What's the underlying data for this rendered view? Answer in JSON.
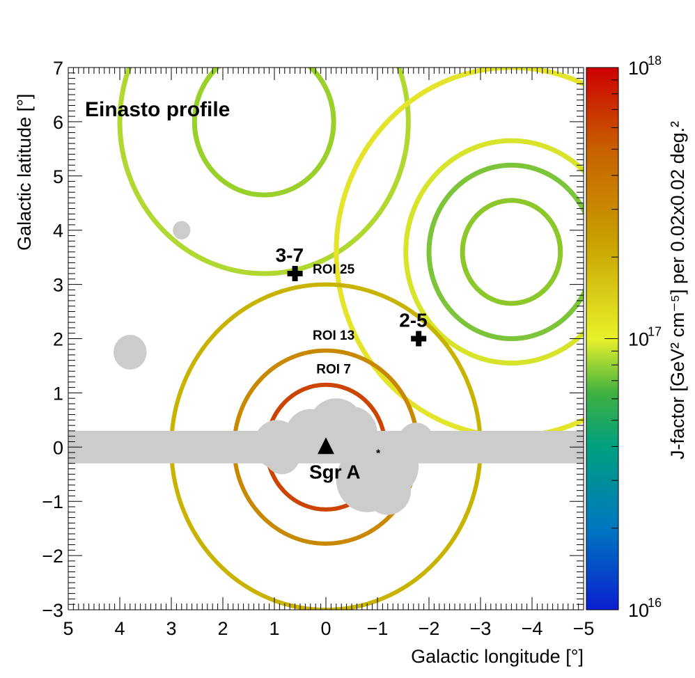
{
  "chart_data": {
    "type": "heatmap",
    "title": "Einasto profile",
    "xlabel": "Galactic longitude [°]",
    "ylabel": "Galactic latitude [°]",
    "xlim": [
      5,
      -5
    ],
    "ylim": [
      -3,
      7
    ],
    "x_ticks": [
      "5",
      "4",
      "3",
      "2",
      "1",
      "0",
      "−1",
      "−2",
      "−3",
      "−4",
      "−5"
    ],
    "y_ticks": [
      "−3",
      "−2",
      "−1",
      "0",
      "1",
      "2",
      "3",
      "4",
      "5",
      "6",
      "7"
    ],
    "colorbar": {
      "label": "J-factor [GeV² cm⁻⁵] per 0.02x0.02 deg.²",
      "scale": "log",
      "range": [
        1e+16,
        1e+18
      ],
      "tick_labels": [
        {
          "value": 1e+16,
          "base": "10",
          "exp": "16"
        },
        {
          "value": 1e+17,
          "base": "10",
          "exp": "17"
        },
        {
          "value": 1e+18,
          "base": "10",
          "exp": "18"
        }
      ],
      "colors": [
        "#0a1fd0",
        "#0088c8",
        "#00a070",
        "#40b040",
        "#a8d830",
        "#f2f22a",
        "#c8a000",
        "#c86400",
        "#cc0000"
      ]
    },
    "rois": [
      {
        "label": "ROI 7",
        "l": 0,
        "b": 0,
        "radius": 1.15,
        "color": "#cc4400"
      },
      {
        "label": "ROI 13",
        "l": 0,
        "b": 0,
        "radius": 1.78,
        "color": "#c88800"
      },
      {
        "label": "ROI 25",
        "l": 0,
        "b": 0,
        "radius": 3.0,
        "color": "#c8b400"
      }
    ],
    "outer_rings": [
      {
        "l": 1.2,
        "b": 6.0,
        "radii": [
          1.35,
          2.8
        ],
        "colors": [
          "#9ad02a",
          "#b0d830"
        ]
      },
      {
        "l": -3.6,
        "b": 3.6,
        "radii": [
          0.95,
          1.6,
          2.05,
          3.4
        ],
        "colors": [
          "#8cc82a",
          "#7cc43a",
          "#d8e42a",
          "#e4e42a"
        ]
      }
    ],
    "pointings": [
      {
        "label": "3-7",
        "l": 0.6,
        "b": 3.2
      },
      {
        "label": "2-5",
        "l": -1.8,
        "b": 2.0
      }
    ],
    "sgr_a": {
      "label": "Sgr A",
      "sup": "*",
      "l": 0,
      "b": 0
    },
    "roi_labels": [
      "ROI 25",
      "ROI 13",
      "ROI 7"
    ],
    "exclusion_color": "#cccccc"
  }
}
